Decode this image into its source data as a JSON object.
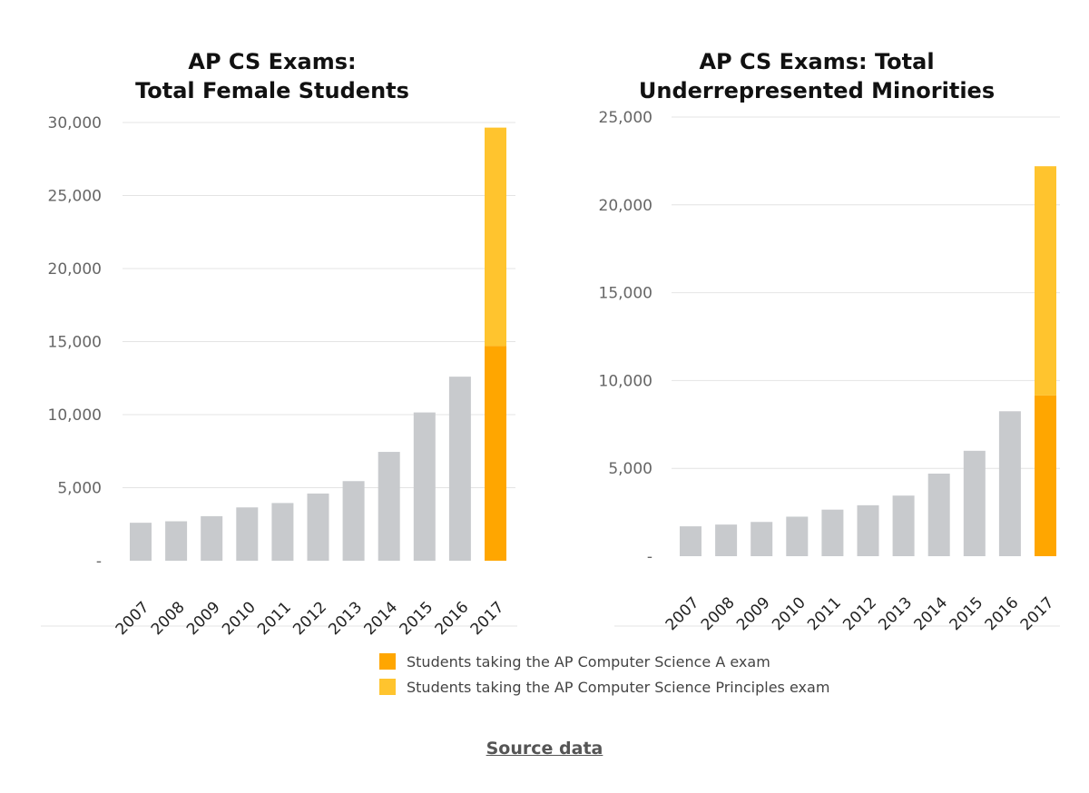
{
  "colors": {
    "historical": "#c8cacd",
    "csa": "#ffa600",
    "csp": "#ffc42e",
    "grid": "#e4e4e4",
    "axis_text": "#666666"
  },
  "legend": {
    "items": [
      {
        "label": "Students taking the AP Computer Science A exam",
        "color": "#ffa600"
      },
      {
        "label": "Students taking the AP Computer Science Principles exam",
        "color": "#ffc42e"
      }
    ]
  },
  "source": {
    "label": "Source data"
  },
  "chart_data": [
    {
      "type": "bar",
      "title_lines": [
        "AP CS Exams:",
        "Total Female Students"
      ],
      "categories": [
        "2007",
        "2008",
        "2009",
        "2010",
        "2011",
        "2012",
        "2013",
        "2014",
        "2015",
        "2016",
        "2017"
      ],
      "values": [
        2600,
        2700,
        3050,
        3650,
        3950,
        4600,
        5450,
        7450,
        10150,
        12600,
        14700
      ],
      "stacked_2017": {
        "csa": 14700,
        "csp": 14950,
        "total": 29650
      },
      "ylim": [
        0,
        30000
      ],
      "yticks": [
        0,
        5000,
        10000,
        15000,
        20000,
        25000,
        30000
      ],
      "ytick_labels": [
        "-",
        "5,000",
        "10,000",
        "15,000",
        "20,000",
        "25,000",
        "30,000"
      ],
      "xlabel": "",
      "ylabel": "",
      "grid": true
    },
    {
      "type": "bar",
      "title_lines": [
        "AP CS Exams: Total",
        "Underrepresented Minorities"
      ],
      "categories": [
        "2007",
        "2008",
        "2009",
        "2010",
        "2011",
        "2012",
        "2013",
        "2014",
        "2015",
        "2016",
        "2017"
      ],
      "values": [
        1700,
        1800,
        1950,
        2250,
        2650,
        2900,
        3450,
        4700,
        6000,
        8250,
        9150
      ],
      "stacked_2017": {
        "csa": 9150,
        "csp": 13050,
        "total": 22200
      },
      "ylim": [
        0,
        25000
      ],
      "yticks": [
        0,
        5000,
        10000,
        15000,
        20000,
        25000
      ],
      "ytick_labels": [
        "-",
        "5,000",
        "10,000",
        "15,000",
        "20,000",
        "25,000"
      ],
      "xlabel": "",
      "ylabel": "",
      "grid": true
    }
  ]
}
